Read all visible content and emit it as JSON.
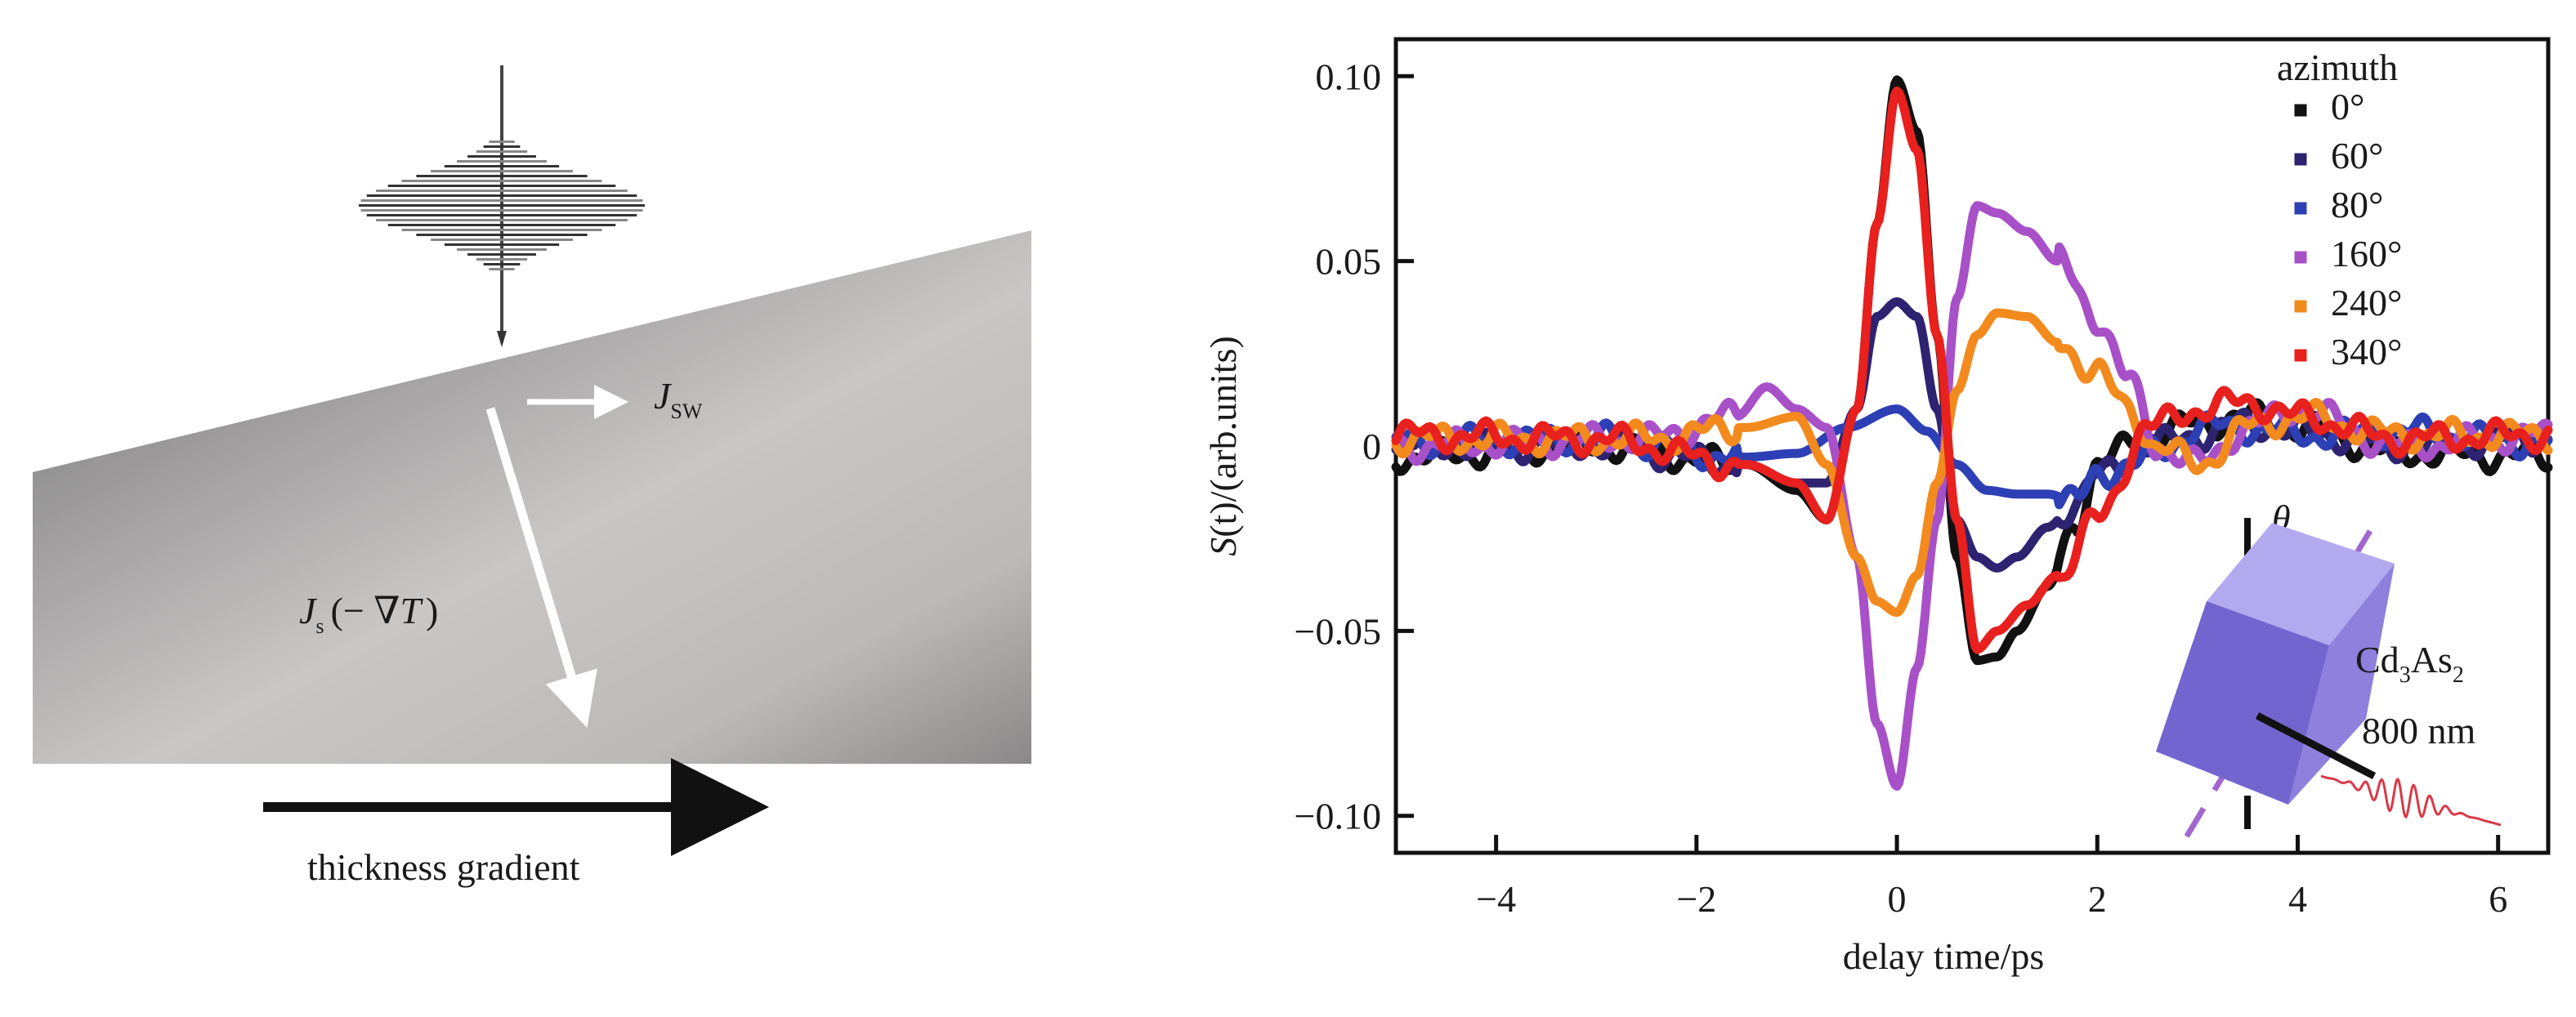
{
  "colors": {
    "s0": "#111111",
    "s60": "#2e2370",
    "s80": "#2c3fb4",
    "s160": "#a850c8",
    "s240": "#f28a1e",
    "s340": "#e8201e",
    "crystal": "#7b6dd6",
    "pulse": "#d83a4a"
  },
  "left_panel": {
    "js_main": "J",
    "js_sub": "s",
    "js_rest": "(− ∇",
    "js_T": "T",
    "js_close": ")",
    "jsw_main": "J",
    "jsw_sub": "SW",
    "gradient_label": "thickness gradient"
  },
  "inset": {
    "theta": "θ",
    "material_main": "Cd",
    "material_sub1": "3",
    "material_mid": "As",
    "material_sub2": "2",
    "wavelength": "800 nm"
  },
  "chart_data": {
    "type": "line",
    "xlabel": "delay time/ps",
    "ylabel_main": "S",
    "ylabel_arg": "(t)",
    "ylabel_rest": "/(arb.units)",
    "xlim": [
      -5,
      6.5
    ],
    "ylim": [
      -0.11,
      0.11
    ],
    "xticks": [
      -4,
      -2,
      0,
      2,
      4,
      6
    ],
    "xtick_labels": [
      "−4",
      "−2",
      "0",
      "2",
      "4",
      "6"
    ],
    "yticks": [
      0.1,
      0.05,
      0,
      -0.05,
      -0.1
    ],
    "ytick_labels": [
      "0.10",
      "0.05",
      "0",
      "−0.05",
      "−0.10"
    ],
    "grid": false,
    "legend_title": "azimuth",
    "legend_position": "top-right",
    "series": [
      {
        "name": "0°",
        "color": "#111111",
        "x": [
          -5,
          -3,
          -1.5,
          -1,
          -0.7,
          -0.4,
          -0.2,
          0,
          0.2,
          0.4,
          0.6,
          0.8,
          1.0,
          1.2,
          1.5,
          1.8,
          2.0,
          2.5,
          3,
          3.5,
          4,
          5,
          6.5
        ],
        "y": [
          -0.003,
          0,
          -0.005,
          -0.012,
          -0.02,
          0.01,
          0.06,
          0.099,
          0.085,
          0.03,
          -0.03,
          -0.058,
          -0.057,
          -0.05,
          -0.038,
          -0.02,
          -0.005,
          0.003,
          0.006,
          0.008,
          0.005,
          -0.002,
          -0.003
        ]
      },
      {
        "name": "60°",
        "color": "#2e2370",
        "x": [
          -5,
          -3,
          -1.5,
          -1,
          -0.7,
          -0.4,
          -0.2,
          0,
          0.2,
          0.4,
          0.6,
          0.8,
          1.0,
          1.2,
          1.5,
          1.8,
          2.0,
          2.5,
          3,
          3.5,
          4,
          5,
          6.5
        ],
        "y": [
          0,
          0,
          -0.005,
          -0.01,
          -0.01,
          0.01,
          0.035,
          0.039,
          0.035,
          0.01,
          -0.02,
          -0.03,
          -0.033,
          -0.03,
          -0.022,
          -0.015,
          -0.008,
          0,
          0.003,
          0.006,
          0.004,
          0,
          0.002
        ]
      },
      {
        "name": "80°",
        "color": "#2c3fb4",
        "x": [
          -5,
          -3,
          -1.5,
          -1,
          -0.5,
          0,
          0.3,
          0.6,
          0.9,
          1.2,
          1.5,
          1.8,
          2.0,
          2.3,
          2.6,
          3,
          3.5,
          4,
          5,
          6.5
        ],
        "y": [
          0.001,
          0.002,
          -0.003,
          -0.002,
          0.005,
          0.01,
          0.004,
          -0.005,
          -0.012,
          -0.013,
          -0.013,
          -0.015,
          -0.008,
          -0.005,
          -0.002,
          0.005,
          0.005,
          0.003,
          0.004,
          0.001
        ]
      },
      {
        "name": "160°",
        "color": "#a850c8",
        "x": [
          -5,
          -2.5,
          -1.6,
          -1.3,
          -1.0,
          -0.7,
          -0.4,
          -0.2,
          0,
          0.2,
          0.4,
          0.6,
          0.8,
          1.0,
          1.3,
          1.6,
          2.0,
          2.3,
          2.6,
          3,
          3.5,
          4,
          5,
          6.5
        ],
        "y": [
          0,
          0.002,
          0.008,
          0.016,
          0.01,
          0.005,
          -0.03,
          -0.075,
          -0.092,
          -0.06,
          -0.02,
          0.04,
          0.065,
          0.063,
          0.058,
          0.05,
          0.035,
          0.018,
          0.0,
          -0.005,
          0.005,
          0.01,
          0.0,
          0.003
        ]
      },
      {
        "name": "240°",
        "color": "#f28a1e",
        "x": [
          -5,
          -2.5,
          -1.5,
          -1.0,
          -0.7,
          -0.4,
          -0.2,
          0,
          0.2,
          0.4,
          0.6,
          0.8,
          1.0,
          1.3,
          1.6,
          2.0,
          2.3,
          2.6,
          3,
          3.5,
          4,
          5,
          6.5
        ],
        "y": [
          0.002,
          0.002,
          0.005,
          0.008,
          -0.005,
          -0.03,
          -0.042,
          -0.045,
          -0.035,
          -0.01,
          0.015,
          0.03,
          0.036,
          0.035,
          0.028,
          0.02,
          0.01,
          0.0,
          -0.005,
          0.005,
          0.008,
          0.003,
          0.003
        ]
      },
      {
        "name": "340°",
        "color": "#e8201e",
        "x": [
          -5,
          -3,
          -1.5,
          -1.0,
          -0.7,
          -0.4,
          -0.2,
          0,
          0.2,
          0.4,
          0.6,
          0.8,
          1.0,
          1.3,
          1.6,
          2.0,
          2.5,
          3,
          3.5,
          4,
          5,
          6.5
        ],
        "y": [
          0.003,
          0.002,
          -0.005,
          -0.01,
          -0.02,
          0.01,
          0.06,
          0.096,
          0.08,
          0.03,
          -0.02,
          -0.055,
          -0.05,
          -0.043,
          -0.035,
          -0.02,
          0.005,
          0.01,
          0.012,
          0.008,
          0.002,
          0.003
        ]
      }
    ]
  }
}
